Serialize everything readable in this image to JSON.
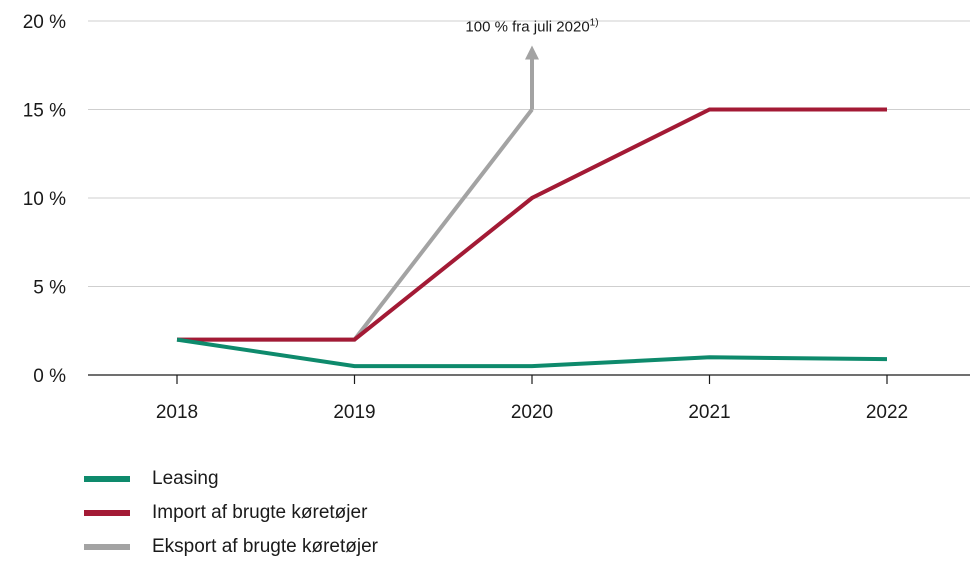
{
  "chart_data": {
    "type": "line",
    "x": [
      "2018",
      "2019",
      "2020",
      "2021",
      "2022"
    ],
    "y_ticks": [
      "0 %",
      "5 %",
      "10 %",
      "15 %",
      "20 %"
    ],
    "ylim": [
      0,
      20
    ],
    "grid": "horizontal",
    "legend_position": "bottom-left",
    "series": [
      {
        "name": "Leasing",
        "color": "#0e8a6c",
        "values": [
          2,
          0.5,
          0.5,
          1,
          0.9
        ]
      },
      {
        "name": "Import af brugte køretøjer",
        "color": "#a31a35",
        "values": [
          2,
          2,
          10,
          15,
          15
        ]
      },
      {
        "name": "Eksport af brugte køretøjer",
        "color": "#a3a3a3",
        "values": [
          2,
          2,
          15,
          null,
          null
        ]
      }
    ],
    "annotation": {
      "text": "100 % fra juli 2020",
      "footnote": "1)",
      "x": "2020",
      "y_from": 15,
      "y_to": 18.5
    }
  }
}
